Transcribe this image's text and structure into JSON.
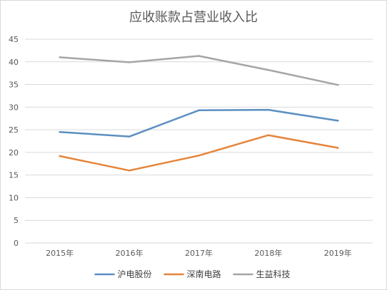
{
  "chart_data": {
    "type": "line",
    "title": "应收账款占营业收入比",
    "categories": [
      "2015年",
      "2016年",
      "2017年",
      "2018年",
      "2019年"
    ],
    "ylim": [
      0,
      45
    ],
    "yticks": [
      0,
      5,
      10,
      15,
      20,
      25,
      30,
      35,
      40,
      45
    ],
    "grid": true,
    "legend_position": "bottom",
    "series": [
      {
        "name": "沪电股份",
        "color": "#5B8FC0",
        "values": [
          24.5,
          23.5,
          29.3,
          29.4,
          27.0
        ]
      },
      {
        "name": "深南电路",
        "color": "#E5843A",
        "values": [
          19.2,
          16.0,
          19.3,
          23.8,
          21.0
        ]
      },
      {
        "name": "生益科技",
        "color": "#A5A5A5",
        "values": [
          41.0,
          39.9,
          41.3,
          38.2,
          34.9
        ]
      }
    ]
  }
}
